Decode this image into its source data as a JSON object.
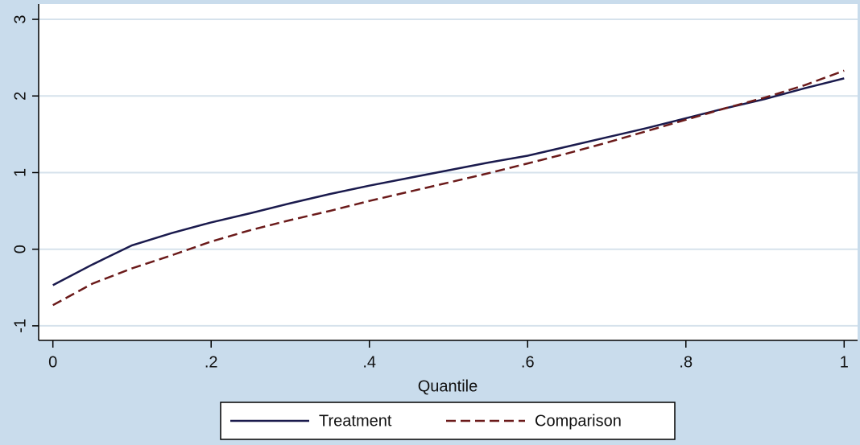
{
  "chart_data": {
    "type": "line",
    "xlabel": "Quantile",
    "x": [
      0,
      0.05,
      0.1,
      0.15,
      0.2,
      0.25,
      0.3,
      0.35,
      0.4,
      0.45,
      0.5,
      0.55,
      0.6,
      0.65,
      0.7,
      0.75,
      0.8,
      0.85,
      0.9,
      0.95,
      1
    ],
    "series": [
      {
        "name": "Treatment",
        "color": "#1a1a4d",
        "dash": false,
        "values": [
          -0.47,
          -0.2,
          0.05,
          0.21,
          0.35,
          0.47,
          0.6,
          0.72,
          0.83,
          0.93,
          1.03,
          1.13,
          1.22,
          1.34,
          1.46,
          1.58,
          1.71,
          1.84,
          1.96,
          2.1,
          2.23
        ]
      },
      {
        "name": "Comparison",
        "color": "#6b1a1a",
        "dash": true,
        "values": [
          -0.73,
          -0.45,
          -0.25,
          -0.08,
          0.1,
          0.25,
          0.38,
          0.5,
          0.63,
          0.75,
          0.87,
          0.99,
          1.12,
          1.25,
          1.39,
          1.54,
          1.69,
          1.84,
          1.98,
          2.14,
          2.33
        ]
      }
    ],
    "xlim": [
      -0.018,
      1.017
    ],
    "ylim": [
      -1.19,
      3.2
    ],
    "xticks": [
      0,
      {
        "value": 0.2,
        "label": ".2"
      },
      {
        "value": 0.4,
        "label": ".4"
      },
      {
        "value": 0.6,
        "label": ".6"
      },
      {
        "value": 0.8,
        "label": ".8"
      },
      1
    ],
    "yticks": [
      -1,
      0,
      1,
      2,
      3
    ],
    "grid": true,
    "legend": "bottom"
  }
}
